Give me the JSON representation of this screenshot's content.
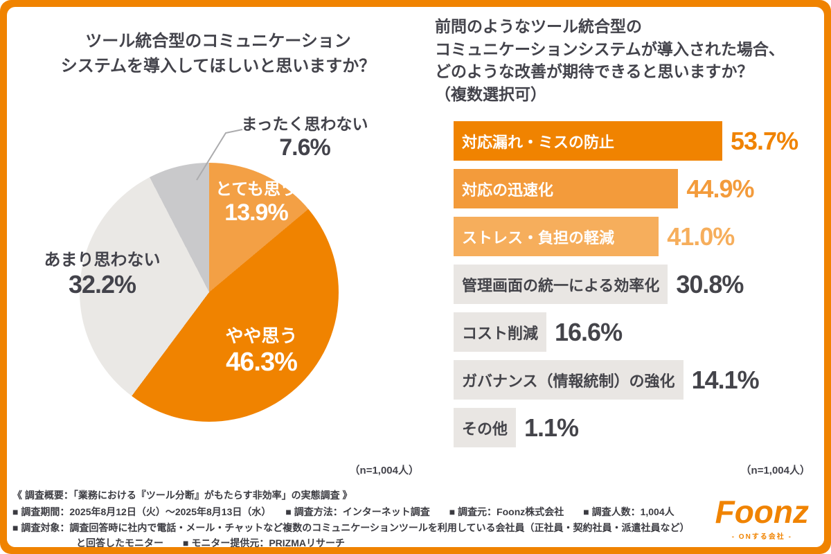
{
  "accent": "#F08300",
  "left_panel": {
    "title_lines": [
      "ツール統合型のコミュニケーション",
      "システムを導入してほしいと思いますか？"
    ],
    "sample_note": "（n=1,004人）"
  },
  "right_panel": {
    "title_lines": [
      "前問のようなツール統合型の",
      "コミュニケーションシステムが導入された場合、",
      "どのような改善が期待できると思いますか？",
      "（複数選択可）"
    ],
    "sample_note": "（n=1,004人）"
  },
  "chart_data": [
    {
      "type": "pie",
      "title": "ツール統合型のコミュニケーションシステムを導入してほしいと思いますか？",
      "labels": [
        "とても思う",
        "やや思う",
        "あまり思わない",
        "まったく思わない"
      ],
      "values": [
        13.9,
        46.3,
        32.2,
        7.6
      ],
      "colors": [
        "#F3A045",
        "#F08300",
        "#EAE8E5",
        "#C9C9CB"
      ],
      "start_angle_deg": 0,
      "direction": "clockwise",
      "n": "（n=1,004人）"
    },
    {
      "type": "bar",
      "orientation": "horizontal",
      "title": "前問のようなツール統合型のコミュニケーションシステムが導入された場合、どのような改善が期待できると思いますか？（複数選択可）",
      "categories": [
        "対応漏れ・ミスの防止",
        "対応の迅速化",
        "ストレス・負担の軽減",
        "管理画面の統一による効率化",
        "コスト削減",
        "ガバナンス（情報統制）の強化",
        "その他"
      ],
      "values": [
        53.7,
        44.9,
        41.0,
        30.8,
        16.6,
        14.1,
        1.1
      ],
      "bar_colors": [
        "#F08300",
        "#F39B3B",
        "#F6AE5C",
        "#E9E6E3",
        "#E9E6E3",
        "#E9E6E3",
        "#E9E6E3"
      ],
      "label_colors": [
        "#FFFFFF",
        "#FFFFFF",
        "#FFFFFF",
        "#44444A",
        "#44444A",
        "#44444A",
        "#44444A"
      ],
      "value_colors": [
        "#F08300",
        "#F39B3B",
        "#F6AE5C",
        "#44444A",
        "#44444A",
        "#44444A",
        "#44444A"
      ],
      "xlim": [
        0,
        53.7
      ],
      "n": "（n=1,004人）"
    }
  ],
  "footer": {
    "lines": [
      "《 調査概要：「業務における『ツール分断』がもたらす非効率」の実態調査 》",
      "■ 調査期間：2025年8月12日（火）〜2025年8月13日（水）　　■ 調査方法：インターネット調査　　■ 調査元：Foonz株式会社　　■ 調査人数：1,004人",
      "■ 調査対象：調査回答時に社内で電話・メール・チャットなど複数のコミュニケーションツールを利用している会社員（正社員・契約社員・派遣社員など）",
      "と回答したモニター　　■ モニター提供元：PRIZMAリサーチ"
    ],
    "logo": {
      "text": "Foonz",
      "tagline": "- ONする会社 -",
      "color": "#F08300"
    }
  }
}
